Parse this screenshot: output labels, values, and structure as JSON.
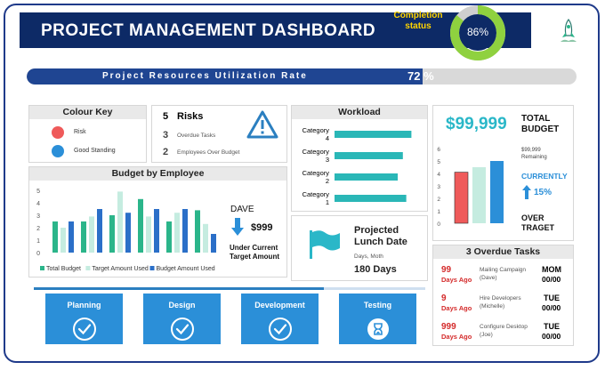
{
  "header": {
    "title": "PROJECT MANAGEMENT DASHBOARD",
    "completion_label_1": "Completion",
    "completion_label_2": "status",
    "completion_value": "86%",
    "completion_fraction": 0.86
  },
  "utilization": {
    "label": "Project Resources Utilization Rate",
    "value": "72 %",
    "fraction": 0.72
  },
  "colour_key": {
    "title": "Colour Key",
    "items": [
      {
        "label": "Risk",
        "color": "#ef5a5a"
      },
      {
        "label": "Good Standing",
        "color": "#2b8fd8"
      }
    ]
  },
  "risks": {
    "risk_count": "5",
    "risk_label": "Risks",
    "overdue_count": "3",
    "overdue_label": "Overdue Tasks",
    "employees_count": "2",
    "employees_label": "Employees Over Budget",
    "warning_icon": "warning-triangle-icon"
  },
  "workload": {
    "title": "Workload",
    "bar_color": "#2ab7b7"
  },
  "budget": {
    "amount": "$99,999",
    "total_label_1": "TOTAL",
    "total_label_2": "BUDGET",
    "remaining_value": "$99,999",
    "remaining_label": "Remaining",
    "currently_label": "CURRENTLY",
    "change_value": "15%",
    "over_label_1": "OVER",
    "over_label_2": "TRAGET"
  },
  "budget_by_employee": {
    "title": "Budget by Employee",
    "employee_name": "DAVE",
    "employee_amount": "$999",
    "employee_note_1": "Under Current",
    "employee_note_2": "Target Amount"
  },
  "lunch": {
    "title_1": "Projected",
    "title_2": "Lunch Date",
    "units_label": "Days, Moth",
    "days_value": "180 Days",
    "flag_icon": "flag-icon"
  },
  "overdue_tasks": {
    "title": "3 Overdue Tasks",
    "items": [
      {
        "days": "99",
        "days_label": "Days Ago",
        "task": "Mailing Campaign",
        "owner": "(Dave)",
        "day": "MOM",
        "date": "00/00"
      },
      {
        "days": "9",
        "days_label": "Days Ago",
        "task": "Hire Developers",
        "owner": "(Michelle)",
        "day": "TUE",
        "date": "00/00"
      },
      {
        "days": "999",
        "days_label": "Days Ago",
        "task": "Configure Desktop",
        "owner": "(Joe)",
        "day": "TUE",
        "date": "00/00"
      }
    ]
  },
  "stages": [
    {
      "label": "Planning",
      "icon": "check-circle-icon"
    },
    {
      "label": "Design",
      "icon": "check-circle-icon"
    },
    {
      "label": "Development",
      "icon": "check-circle-icon"
    },
    {
      "label": "Testing",
      "icon": "hourglass-circle-icon"
    }
  ],
  "stage_progress_fraction": 0.74,
  "chart_data": [
    {
      "type": "bar",
      "title": "Workload",
      "orientation": "horizontal",
      "categories": [
        "Category 4",
        "Category 3",
        "Category 2",
        "Category 1"
      ],
      "values": [
        4.5,
        4.0,
        3.7,
        4.2
      ],
      "grid": false
    },
    {
      "type": "bar",
      "title": "Budget by Employee",
      "categories": [
        "1",
        "2",
        "3",
        "4",
        "5",
        "6"
      ],
      "series": [
        {
          "name": "Total Budget",
          "color": "#2bb58a",
          "values": [
            2.5,
            2.5,
            3.0,
            4.3,
            2.5,
            3.4
          ]
        },
        {
          "name": "Target Amount Used",
          "color": "#c5ece0",
          "values": [
            2.0,
            2.9,
            4.9,
            2.9,
            3.2,
            2.3
          ]
        },
        {
          "name": "Budget Amount Used",
          "color": "#2b6fc8",
          "values": [
            2.5,
            3.5,
            3.2,
            3.5,
            3.5,
            1.5
          ]
        }
      ],
      "ylim": [
        0,
        5
      ],
      "yticks": [
        "0",
        "1",
        "2",
        "3",
        "4",
        "5"
      ],
      "legend": "bottom",
      "grid": false
    },
    {
      "type": "bar",
      "title": "Total Budget",
      "categories": [
        "1",
        "2",
        "3"
      ],
      "series_colors": [
        "#ef5a5a",
        "#c5ece0",
        "#2b8fd8"
      ],
      "values": [
        4.1,
        4.5,
        5.0
      ],
      "ylim": [
        0,
        6
      ],
      "yticks": [
        "0",
        "1",
        "2",
        "3",
        "4",
        "5",
        "6"
      ],
      "grid": false
    }
  ]
}
